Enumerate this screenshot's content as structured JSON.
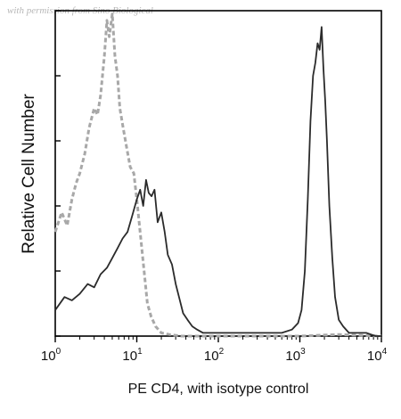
{
  "watermark": "with permission from Sino Biological",
  "chart_data": {
    "type": "line",
    "xlabel": "PE CD4, with isotype control",
    "ylabel": "Relative Cell Number",
    "xscale": "log",
    "xlim": [
      1,
      10000
    ],
    "ylim": [
      0,
      100
    ],
    "grid": false,
    "x_ticks": [
      {
        "value": 1,
        "base": "10",
        "exp": "0"
      },
      {
        "value": 10,
        "base": "10",
        "exp": "1"
      },
      {
        "value": 100,
        "base": "10",
        "exp": "2"
      },
      {
        "value": 1000,
        "base": "10",
        "exp": "3"
      },
      {
        "value": 10000,
        "base": "10",
        "exp": "4"
      }
    ],
    "series": [
      {
        "role": "isotype control",
        "color": "#a8a8a8",
        "style": "dashed",
        "x": [
          1.0,
          1.2,
          1.4,
          1.6,
          1.8,
          2.0,
          2.3,
          2.6,
          3.0,
          3.3,
          3.6,
          4.0,
          4.3,
          4.6,
          5.0,
          5.4,
          5.8,
          6.2,
          6.8,
          7.5,
          8.3,
          9.2,
          10.2,
          11.2,
          12.3,
          13.5,
          15.0,
          17.0,
          20.0,
          25.0,
          35.0,
          60.0,
          200.0,
          1000.0,
          3000.0,
          10000.0
        ],
        "y": [
          32,
          38,
          34,
          42,
          47,
          50,
          56,
          64,
          70,
          68,
          74,
          86,
          97,
          92,
          99,
          86,
          80,
          70,
          64,
          58,
          52,
          50,
          40,
          30,
          20,
          10,
          6,
          3,
          1,
          0.5,
          0,
          0,
          0,
          0,
          0.5,
          0
        ]
      },
      {
        "role": "PE CD4",
        "color": "#2b2b2b",
        "style": "solid",
        "x": [
          1.0,
          1.3,
          1.6,
          2.0,
          2.5,
          3.0,
          3.6,
          4.3,
          5.0,
          5.8,
          6.7,
          7.7,
          8.8,
          10.0,
          11.0,
          12.0,
          13.0,
          14.0,
          15.2,
          16.5,
          18.0,
          20.0,
          22.0,
          24.0,
          27.0,
          30.0,
          33.0,
          37.0,
          42.0,
          48.0,
          55.0,
          65.0,
          80.0,
          100.0,
          150.0,
          250.0,
          400.0,
          600.0,
          800.0,
          950.0,
          1050.0,
          1150.0,
          1250.0,
          1350.0,
          1450.0,
          1550.0,
          1650.0,
          1750.0,
          1850.0,
          1950.0,
          2050.0,
          2150.0,
          2300.0,
          2500.0,
          2700.0,
          3000.0,
          3400.0,
          4000.0,
          5000.0,
          6500.0,
          8500.0,
          10000.0
        ],
        "y": [
          8,
          12,
          11,
          13,
          16,
          15,
          19,
          21,
          24,
          27,
          30,
          32,
          37,
          42,
          45,
          40,
          48,
          44,
          43,
          45,
          35,
          38,
          32,
          25,
          22,
          16,
          12,
          7,
          5,
          3,
          2,
          1,
          1,
          1,
          1,
          1,
          1,
          1,
          2,
          4,
          8,
          20,
          42,
          66,
          80,
          84,
          90,
          88,
          95,
          82,
          72,
          60,
          40,
          24,
          12,
          5,
          3,
          1,
          1,
          1,
          0,
          0
        ]
      }
    ]
  }
}
